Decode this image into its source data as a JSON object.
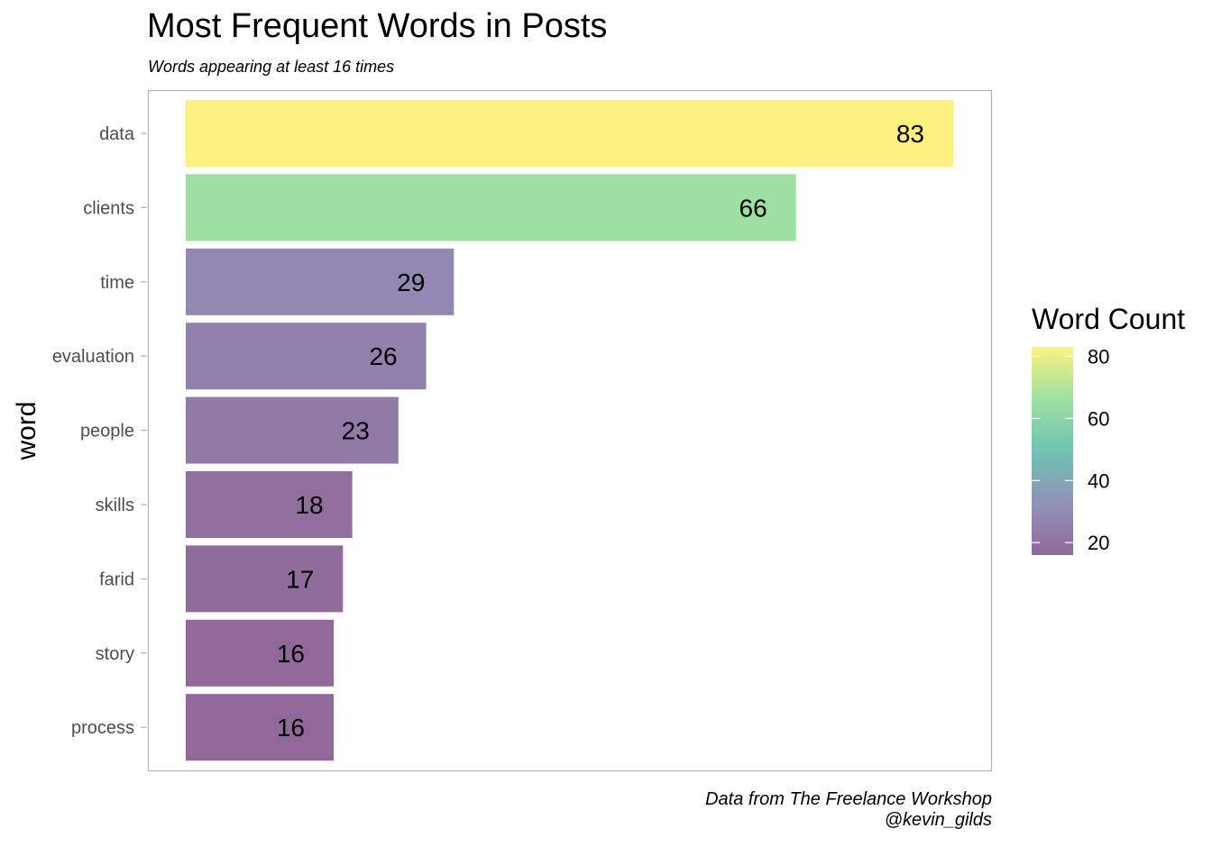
{
  "chart_data": {
    "type": "bar",
    "orientation": "horizontal",
    "title": "Most Frequent Words in Posts",
    "subtitle": "Words appearing at least 16 times",
    "ylabel": "word",
    "xlabel": "",
    "categories": [
      "data",
      "clients",
      "time",
      "evaluation",
      "people",
      "skills",
      "farid",
      "story",
      "process"
    ],
    "values": [
      83,
      66,
      29,
      26,
      23,
      18,
      17,
      16,
      16
    ],
    "value_labels": [
      "83",
      "66",
      "29",
      "26",
      "23",
      "18",
      "17",
      "16",
      "16"
    ],
    "xlim": [
      0,
      87
    ],
    "grid": false,
    "legend": {
      "title": "Word Count",
      "position": "right",
      "range": [
        16,
        83
      ],
      "ticks": [
        20,
        40,
        60,
        80
      ],
      "tick_labels": [
        "20",
        "40",
        "60",
        "80"
      ],
      "colors": [
        "#8E6698",
        "#8F90B7",
        "#6CC1B0",
        "#9CDFA0",
        "#FCF17D"
      ]
    },
    "caption": [
      "Data from The Freelance Workshop",
      "@kevin_gilds"
    ]
  }
}
